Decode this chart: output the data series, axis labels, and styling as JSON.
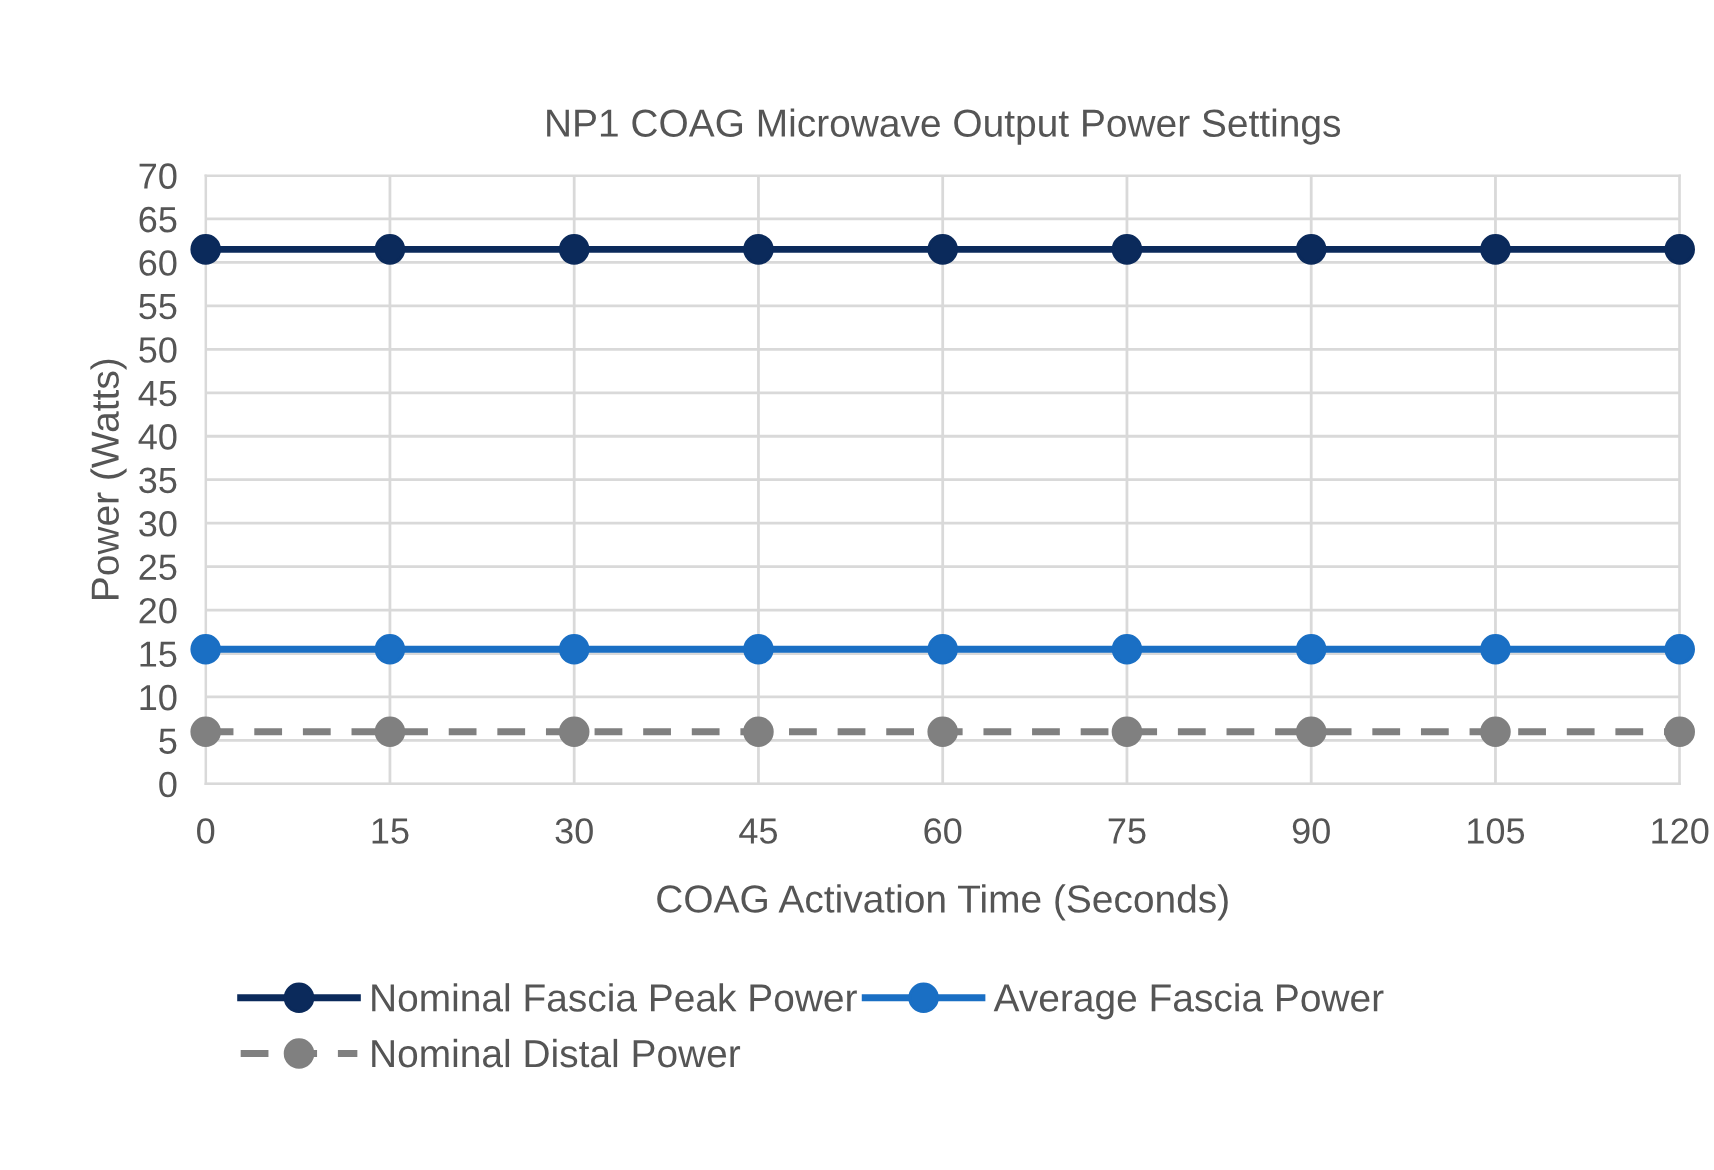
{
  "chart_data": {
    "type": "line",
    "title": "NP1 COAG Microwave Output Power Settings",
    "xlabel": "COAG Activation Time (Seconds)",
    "ylabel": "Power (Watts)",
    "x": [
      0,
      15,
      30,
      45,
      60,
      75,
      90,
      105,
      120
    ],
    "series": [
      {
        "name": "Nominal Fascia Peak Power",
        "color": "#0b2a5b",
        "values": [
          61.5,
          61.5,
          61.5,
          61.5,
          61.5,
          61.5,
          61.5,
          61.5,
          61.5
        ]
      },
      {
        "name": "Average Fascia Power",
        "color": "#1a6fc4",
        "values": [
          15.5,
          15.5,
          15.5,
          15.5,
          15.5,
          15.5,
          15.5,
          15.5,
          15.5
        ]
      },
      {
        "name": "Nominal Distal Power",
        "color": "#808080",
        "line_style": "dashed",
        "values": [
          6,
          6,
          6,
          6,
          6,
          6,
          6,
          6,
          6
        ]
      }
    ],
    "xlim": [
      0,
      120
    ],
    "xticks": [
      0,
      15,
      30,
      45,
      60,
      75,
      90,
      105,
      120
    ],
    "ylim": [
      0,
      70
    ],
    "yticks": [
      0,
      5,
      10,
      15,
      20,
      25,
      30,
      35,
      40,
      45,
      50,
      55,
      60,
      65,
      70
    ],
    "grid": true,
    "legend": "bottom",
    "marker": "circle",
    "line_style": "solid"
  }
}
